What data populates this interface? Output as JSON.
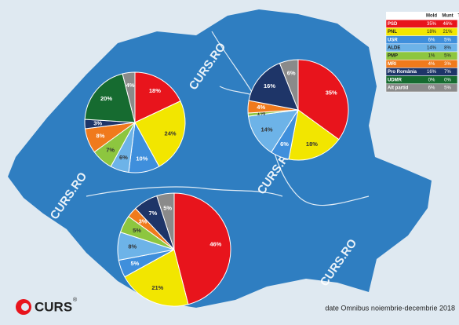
{
  "chart_data": [
    {
      "type": "pie",
      "name": "Mold",
      "categories": [
        "PSD",
        "PNL",
        "USR",
        "ALDE",
        "PMP",
        "MRI",
        "Pro România",
        "UDMR",
        "Alt partid"
      ],
      "values": [
        35,
        18,
        6,
        14,
        1,
        4,
        16,
        0,
        6
      ],
      "value_labels": [
        "35%",
        "18%",
        "6%",
        "14%",
        "1%",
        "4%",
        "16%",
        "0%",
        "6%"
      ],
      "colors": [
        "#e8141c",
        "#f2e600",
        "#3f8fdc",
        "#6db3e8",
        "#8dc63f",
        "#f07a1c",
        "#1e3568",
        "#166b30",
        "#8a8a8a"
      ]
    },
    {
      "type": "pie",
      "name": "Munt",
      "categories": [
        "PSD",
        "PNL",
        "USR",
        "ALDE",
        "PMP",
        "MRI",
        "Pro România",
        "UDMR",
        "Alt partid"
      ],
      "values": [
        46,
        21,
        5,
        8,
        5,
        3,
        7,
        0,
        5
      ],
      "value_labels": [
        "46%",
        "21%",
        "5%",
        "8%",
        "5%",
        "3%",
        "7%",
        "0%",
        "5%"
      ],
      "colors": [
        "#e8141c",
        "#f2e600",
        "#3f8fdc",
        "#6db3e8",
        "#8dc63f",
        "#f07a1c",
        "#1e3568",
        "#166b30",
        "#8a8a8a"
      ]
    },
    {
      "type": "pie",
      "name": "Trans",
      "categories": [
        "PSD",
        "PNL",
        "USR",
        "ALDE",
        "PMP",
        "MRI",
        "Pro România",
        "UDMR",
        "Alt partid"
      ],
      "values": [
        18,
        24,
        10,
        6,
        7,
        8,
        3,
        20,
        4
      ],
      "value_labels": [
        "18%",
        "24%",
        "10%",
        "6%",
        "7%",
        "8%",
        "3%",
        "20%",
        "4%"
      ],
      "colors": [
        "#e8141c",
        "#f2e600",
        "#3f8fdc",
        "#6db3e8",
        "#8dc63f",
        "#f07a1c",
        "#1e3568",
        "#166b30",
        "#8a8a8a"
      ]
    }
  ],
  "texts": {
    "watermarks": [
      "CURS.RO",
      "CURS.RO",
      "CURS.RO",
      "CURS.RO"
    ],
    "source": "date Omnibus noiembrie-decembrie 2018",
    "logo": "CURS",
    "registered": "®"
  }
}
